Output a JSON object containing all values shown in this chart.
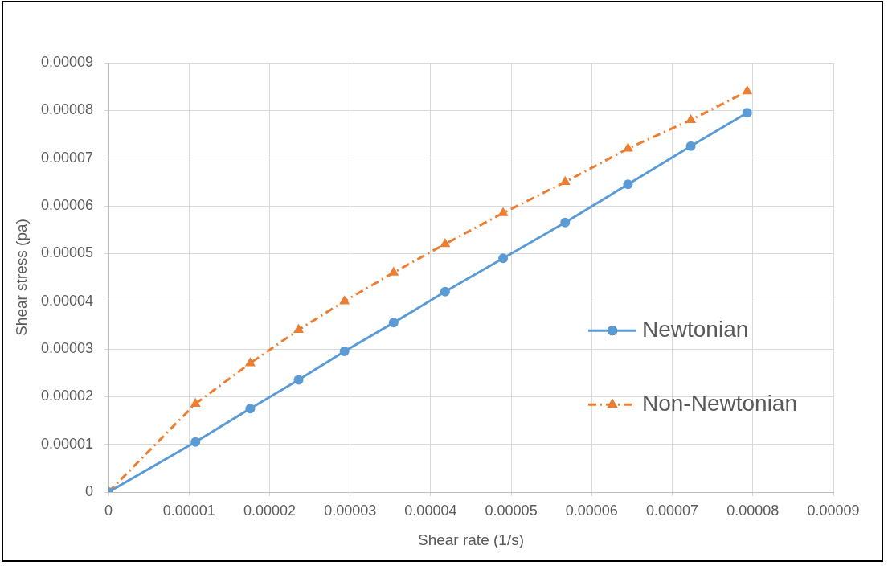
{
  "chart_data": {
    "type": "line",
    "xlabel": "Shear rate (1/s)",
    "ylabel": "Shear stress (pa)",
    "x": [
      0,
      1.08e-05,
      1.76e-05,
      2.36e-05,
      2.93e-05,
      3.54e-05,
      4.18e-05,
      4.9e-05,
      5.67e-05,
      6.45e-05,
      7.23e-05,
      7.93e-05
    ],
    "series": [
      {
        "name": "Newtonian",
        "color": "#5b9bd5",
        "marker": "circle",
        "line_style": "solid",
        "values": [
          0,
          1.05e-05,
          1.75e-05,
          2.35e-05,
          2.95e-05,
          3.55e-05,
          4.2e-05,
          4.9e-05,
          5.65e-05,
          6.45e-05,
          7.25e-05,
          7.95e-05
        ]
      },
      {
        "name": "Non-Newtonian",
        "color": "#ed7d31",
        "marker": "triangle",
        "line_style": "dashed",
        "values": [
          0,
          1.85e-05,
          2.7e-05,
          3.4e-05,
          4e-05,
          4.6e-05,
          5.2e-05,
          5.85e-05,
          6.5e-05,
          7.2e-05,
          7.8e-05,
          8.4e-05
        ]
      }
    ],
    "xlim": [
      0,
      9e-05
    ],
    "xticks": [
      0,
      {
        "value": 1e-05,
        "label": "0.00001"
      },
      {
        "value": 2e-05,
        "label": "0.00002"
      },
      {
        "value": 3e-05,
        "label": "0.00003"
      },
      {
        "value": 4e-05,
        "label": "0.00004"
      },
      {
        "value": 5e-05,
        "label": "0.00005"
      },
      {
        "value": 6e-05,
        "label": "0.00006"
      },
      {
        "value": 7e-05,
        "label": "0.00007"
      },
      {
        "value": 8e-05,
        "label": "0.00008"
      },
      {
        "value": 9e-05,
        "label": "0.00009"
      }
    ],
    "ylim": [
      0,
      9e-05
    ],
    "yticks": [
      0,
      {
        "value": 1e-05,
        "label": "0.00001"
      },
      {
        "value": 2e-05,
        "label": "0.00002"
      },
      {
        "value": 3e-05,
        "label": "0.00003"
      },
      {
        "value": 4e-05,
        "label": "0.00004"
      },
      {
        "value": 5e-05,
        "label": "0.00005"
      },
      {
        "value": 6e-05,
        "label": "0.00006"
      },
      {
        "value": 7e-05,
        "label": "0.00007"
      },
      {
        "value": 8e-05,
        "label": "0.00008"
      },
      {
        "value": 9e-05,
        "label": "0.00009"
      }
    ],
    "grid": true,
    "legend": "right"
  }
}
